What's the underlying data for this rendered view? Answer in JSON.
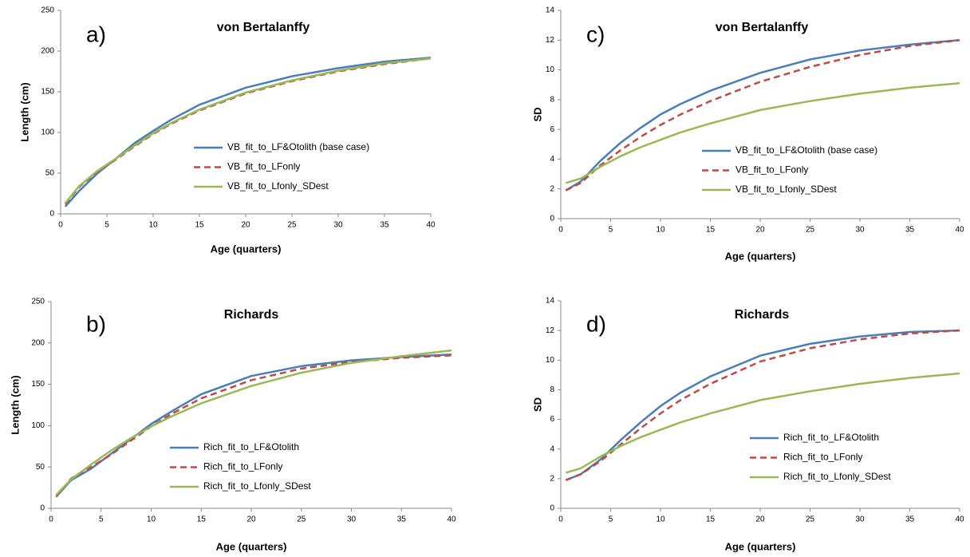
{
  "chart_data": [
    {
      "type": "line",
      "title": "von Bertalanffy",
      "annotation": "a)",
      "x_label": "Age (quarters)",
      "y_label": "Length (cm)",
      "x": [
        0.5,
        2,
        4,
        6,
        8,
        10,
        12,
        15,
        20,
        25,
        30,
        35,
        40
      ],
      "xlim": [
        0,
        40
      ],
      "xticks": [
        0,
        5,
        10,
        15,
        20,
        25,
        30,
        35,
        40
      ],
      "ylim": [
        0,
        250
      ],
      "yticks": [
        0,
        50,
        100,
        150,
        200,
        250
      ],
      "grid": false,
      "legend": "center",
      "series": [
        {
          "name": "VB_fit_to_LF&Otolith (base case)",
          "color": "#4a7ebb",
          "dashed": false,
          "values": [
            9,
            28,
            50,
            68,
            87,
            102,
            116,
            134,
            155,
            169,
            179,
            187,
            192
          ]
        },
        {
          "name": "VB_fit_to_LFonly",
          "color": "#be4b48",
          "dashed": true,
          "values": [
            12,
            33,
            52,
            67,
            83,
            98,
            111,
            127,
            148,
            163,
            175,
            184,
            191
          ]
        },
        {
          "name": "VB_fit_to_Lfonly_SDest",
          "color": "#98b954",
          "dashed": false,
          "values": [
            13,
            34,
            53,
            68,
            84,
            99,
            112,
            128,
            149,
            164,
            176,
            185,
            191
          ]
        }
      ]
    },
    {
      "type": "line",
      "title": "von Bertalanffy",
      "annotation": "c)",
      "x_label": "Age (quarters)",
      "y_label": "SD",
      "x": [
        0.5,
        2,
        4,
        6,
        8,
        10,
        12,
        15,
        20,
        25,
        30,
        35,
        40
      ],
      "xlim": [
        0,
        40
      ],
      "xticks": [
        0,
        5,
        10,
        15,
        20,
        25,
        30,
        35,
        40
      ],
      "ylim": [
        0,
        14
      ],
      "yticks": [
        0,
        2,
        4,
        6,
        8,
        10,
        12,
        14
      ],
      "grid": false,
      "legend": "center",
      "series": [
        {
          "name": "VB_fit_to_LF&Otolith (base case)",
          "color": "#4a7ebb",
          "dashed": false,
          "values": [
            1.9,
            2.5,
            3.9,
            5.1,
            6.1,
            7.0,
            7.7,
            8.6,
            9.8,
            10.7,
            11.3,
            11.7,
            12.0
          ]
        },
        {
          "name": "VB_fit_to_LFonly",
          "color": "#be4b48",
          "dashed": true,
          "values": [
            1.9,
            2.4,
            3.6,
            4.6,
            5.5,
            6.3,
            7.0,
            7.9,
            9.2,
            10.2,
            11.0,
            11.6,
            12.0
          ]
        },
        {
          "name": "VB_fit_to_Lfonly_SDest",
          "color": "#98b954",
          "dashed": false,
          "values": [
            2.4,
            2.7,
            3.5,
            4.2,
            4.8,
            5.3,
            5.8,
            6.4,
            7.3,
            7.9,
            8.4,
            8.8,
            9.1
          ]
        }
      ]
    },
    {
      "type": "line",
      "title": "Richards",
      "annotation": "b)",
      "x_label": "Age (quarters)",
      "y_label": "Length (cm)",
      "x": [
        0.5,
        2,
        4,
        6,
        8,
        10,
        12,
        15,
        20,
        25,
        30,
        35,
        40
      ],
      "xlim": [
        0,
        40
      ],
      "xticks": [
        0,
        5,
        10,
        15,
        20,
        25,
        30,
        35,
        40
      ],
      "ylim": [
        0,
        250
      ],
      "yticks": [
        0,
        50,
        100,
        150,
        200,
        250
      ],
      "grid": false,
      "legend": "center",
      "series": [
        {
          "name": "Rich_fit_to_LF&Otolith",
          "color": "#4a7ebb",
          "dashed": false,
          "values": [
            14,
            34,
            48,
            66,
            84,
            102,
            117,
            138,
            160,
            172,
            179,
            183,
            186
          ]
        },
        {
          "name": "Rich_fit_to_LFonly",
          "color": "#be4b48",
          "dashed": true,
          "values": [
            14,
            36,
            50,
            65,
            82,
            99,
            114,
            133,
            155,
            169,
            177,
            182,
            185
          ]
        },
        {
          "name": "Rich_fit_to_Lfonly_SDest",
          "color": "#98b954",
          "dashed": false,
          "values": [
            16,
            35,
            53,
            70,
            85,
            99,
            111,
            127,
            148,
            164,
            176,
            184,
            191
          ]
        }
      ]
    },
    {
      "type": "line",
      "title": "Richards",
      "annotation": "d)",
      "x_label": "Age (quarters)",
      "y_label": "SD",
      "x": [
        0.5,
        2,
        4,
        6,
        8,
        10,
        12,
        15,
        20,
        25,
        30,
        35,
        40
      ],
      "xlim": [
        0,
        40
      ],
      "xticks": [
        0,
        5,
        10,
        15,
        20,
        25,
        30,
        35,
        40
      ],
      "ylim": [
        0,
        14
      ],
      "yticks": [
        0,
        2,
        4,
        6,
        8,
        10,
        12,
        14
      ],
      "grid": false,
      "legend": "center",
      "series": [
        {
          "name": "Rich_fit_to_LF&Otolith",
          "color": "#4a7ebb",
          "dashed": false,
          "values": [
            1.9,
            2.3,
            3.3,
            4.6,
            5.8,
            6.9,
            7.8,
            8.9,
            10.3,
            11.1,
            11.6,
            11.9,
            12.0
          ]
        },
        {
          "name": "Rich_fit_to_LFonly",
          "color": "#be4b48",
          "dashed": true,
          "values": [
            1.9,
            2.3,
            3.2,
            4.3,
            5.4,
            6.4,
            7.3,
            8.4,
            9.9,
            10.8,
            11.4,
            11.8,
            12.0
          ]
        },
        {
          "name": "Rich_fit_to_Lfonly_SDest",
          "color": "#98b954",
          "dashed": false,
          "values": [
            2.4,
            2.7,
            3.5,
            4.2,
            4.8,
            5.3,
            5.8,
            6.4,
            7.3,
            7.9,
            8.4,
            8.8,
            9.1
          ]
        }
      ]
    }
  ]
}
